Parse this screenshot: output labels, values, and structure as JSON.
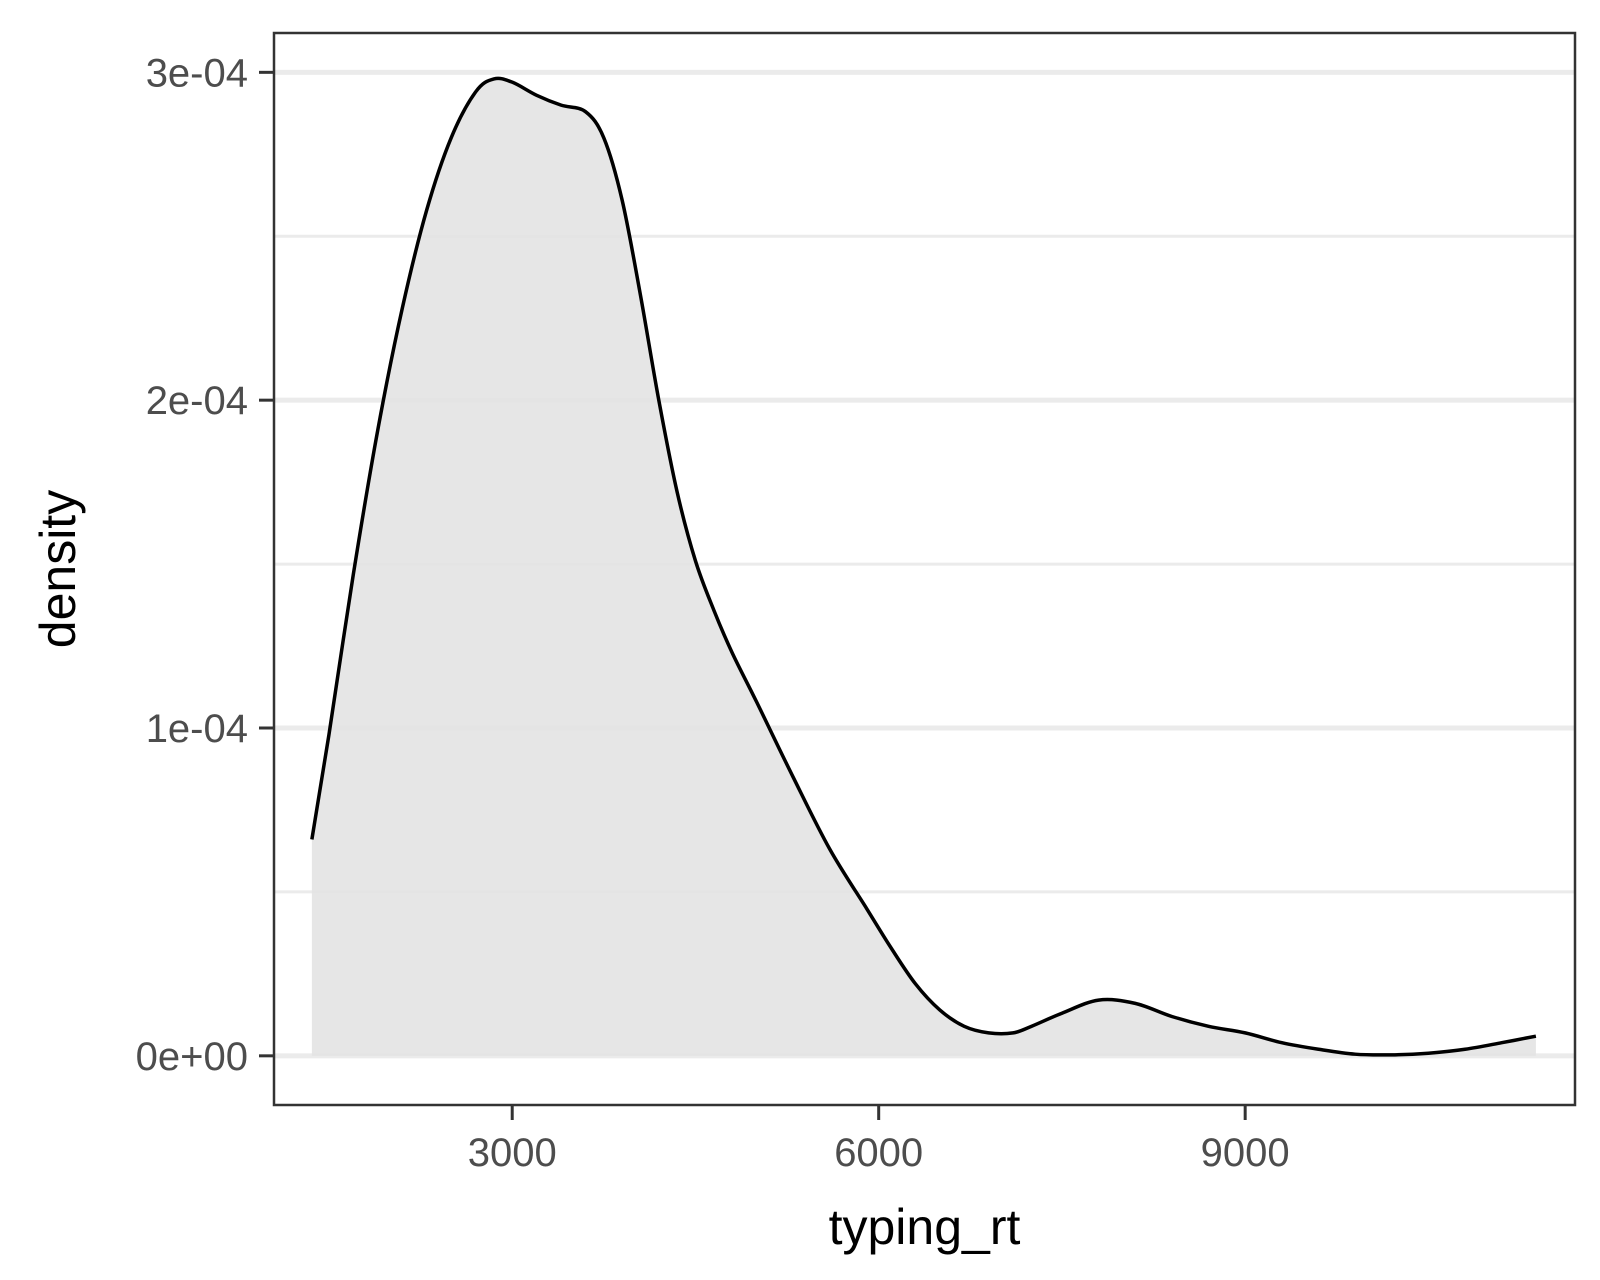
{
  "chart_data": {
    "type": "area",
    "xlabel": "typing_rt",
    "ylabel": "density",
    "xlim": [
      1050,
      11700
    ],
    "ylim": [
      -1.5e-05,
      0.000312
    ],
    "x_ticks": [
      {
        "value": 3000,
        "label": "3000"
      },
      {
        "value": 6000,
        "label": "6000"
      },
      {
        "value": 9000,
        "label": "9000"
      }
    ],
    "y_ticks": [
      {
        "value": 0,
        "label": "0e+00"
      },
      {
        "value": 0.0001,
        "label": "1e-04"
      },
      {
        "value": 0.0002,
        "label": "2e-04"
      },
      {
        "value": 0.0003,
        "label": "3e-04"
      }
    ],
    "y_minor_grid": [
      5e-05,
      0.00015,
      0.00025
    ],
    "grid": {
      "major_y": true,
      "minor_y": true,
      "x": false
    },
    "legend": "none",
    "colors": {
      "fill": "#e3e3e3",
      "line": "#000000",
      "grid": "#ebebeb",
      "panel_border": "#333333",
      "tick_text": "#4d4d4d"
    },
    "series": [
      {
        "x": [
          1360,
          1500,
          1700,
          1900,
          2100,
          2300,
          2500,
          2700,
          2850,
          3000,
          3200,
          3400,
          3600,
          3750,
          3900,
          4050,
          4200,
          4350,
          4500,
          4650,
          4800,
          5000,
          5300,
          5600,
          5900,
          6100,
          6300,
          6500,
          6700,
          6900,
          7100,
          7250,
          7500,
          7800,
          8100,
          8400,
          8700,
          9000,
          9300,
          9600,
          9900,
          10200,
          10500,
          10800,
          11100,
          11380
        ],
        "y": [
          6.6e-05,
          9.8e-05,
          0.000147,
          0.000191,
          0.000228,
          0.000258,
          0.00028,
          0.000294,
          0.000298,
          0.000297,
          0.000293,
          0.00029,
          0.000288,
          0.00028,
          0.000261,
          0.000232,
          0.0002,
          0.000172,
          0.000151,
          0.000136,
          0.000123,
          0.000108,
          8.5e-05,
          6.3e-05,
          4.5e-05,
          3.3e-05,
          2.2e-05,
          1.4e-05,
          9e-06,
          7e-06,
          7e-06,
          9e-06,
          1.3e-05,
          1.7e-05,
          1.6e-05,
          1.2e-05,
          9e-06,
          7e-06,
          4e-06,
          2e-06,
          5e-07,
          3e-07,
          8e-07,
          2e-06,
          4e-06,
          6e-06
        ]
      }
    ]
  }
}
